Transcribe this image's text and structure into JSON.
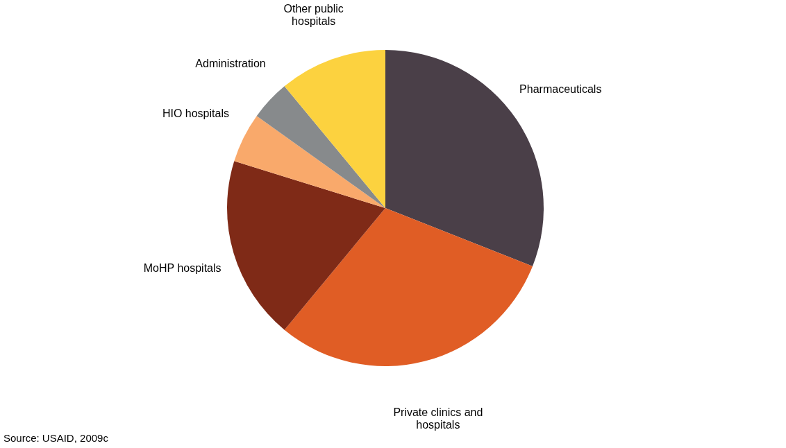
{
  "chart_data": {
    "type": "pie",
    "categories": [
      "Pharmaceuticals",
      "Private clinics and\nhospitals",
      "MoHP hospitals",
      "HIO hospitals",
      "Administration",
      "Other public\nhospitals"
    ],
    "values": [
      31.0,
      30.0,
      18.8,
      5.1,
      4.1,
      11.0
    ],
    "colors": [
      "#4a3f48",
      "#e05d25",
      "#7f2a17",
      "#f9a96b",
      "#878a8c",
      "#fcd23f"
    ],
    "legend": false,
    "annotations": [
      "Source: USAID, 2009c"
    ]
  }
}
